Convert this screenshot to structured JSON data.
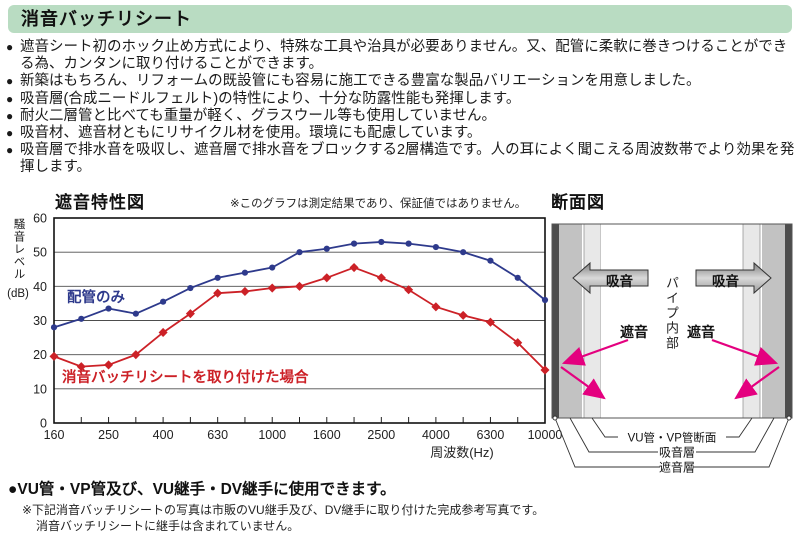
{
  "page": {
    "title": "消音バッチリシート",
    "bullet_char": "●"
  },
  "features": [
    "遮音シート初のホック止め方式により、特殊な工具や治具が必要ありません。又、配管に柔軟に巻きつけることができる為、カンタンに取り付けることができます。",
    "新築はもちろん、リフォームの既設管にも容易に施工できる豊富な製品バリエーションを用意しました。",
    "吸音層(合成ニードルフェルト)の特性により、十分な防露性能も発揮します。",
    "耐火二層管と比べても重量が軽く、グラスウール等も使用していません。",
    "吸音材、遮音材ともにリサイクル材を使用。環境にも配慮しています。",
    "吸音層で排水音を吸収し、遮音層で排水音をブロックする2層構造です。人の耳によく聞こえる周波数帯でより効果を発揮します。"
  ],
  "chart_data": {
    "type": "line",
    "title": "遮音特性図",
    "note": "※このグラフは測定結果であり、保証値ではありません。",
    "xlabel": "周波数(Hz)",
    "ylabel": "騒音レベル",
    "ylabel_unit": "(dB)",
    "ylim": [
      0,
      60
    ],
    "y_ticks": [
      0,
      10,
      20,
      30,
      40,
      50,
      60
    ],
    "grid": true,
    "x": [
      160,
      200,
      250,
      315,
      400,
      500,
      630,
      800,
      1000,
      1250,
      1600,
      2000,
      2500,
      3150,
      4000,
      5000,
      6300,
      8000,
      10000
    ],
    "x_labeled": [
      160,
      250,
      400,
      630,
      1000,
      1600,
      2500,
      4000,
      6300,
      10000
    ],
    "series": [
      {
        "name": "配管のみ",
        "color": "#2e3a8c",
        "marker": "circle",
        "values": [
          28,
          30.5,
          33.5,
          32,
          35.5,
          39.5,
          42.5,
          44,
          45.5,
          50,
          51,
          52.5,
          53,
          52.5,
          51.5,
          50,
          47.5,
          42.5,
          36
        ]
      },
      {
        "name": "消音バッチリシートを取り付けた場合",
        "color": "#cc2127",
        "marker": "diamond",
        "values": [
          19.5,
          16.5,
          17,
          20,
          26.5,
          32,
          38,
          38.5,
          39.5,
          40,
          42.5,
          45.5,
          42.5,
          39,
          34,
          31.5,
          29.5,
          23.5,
          15.5
        ]
      }
    ],
    "legend_position": "inline-annotations"
  },
  "diagram": {
    "title": "断面図",
    "absorb_arrow_label": "吸音",
    "pipe_interior_label": "パイプ内部",
    "block_label": "遮音",
    "layer_labels": {
      "pipe": "VU管・VP管断面",
      "absorb": "吸音層",
      "block": "遮音層"
    },
    "colors": {
      "block_layer": "#4d4d4d",
      "absorb_layer": "#c2c2c2",
      "pipe_wall": "#e8e8e8",
      "arrow_magenta": "#e4007f",
      "leader_line": "#333333"
    }
  },
  "bottom": {
    "headline": "●VU管・VP管及び、VU継手・DV継手に使用できます。",
    "note_line1": "※下記消音バッチリシートの写真は市販のVU継手及び、DV継手に取り付けた完成参考写真です。",
    "note_line2": "消音バッチリシートに継手は含まれていません。"
  },
  "colors": {
    "header_bg": "#b9dcc2",
    "body_text": "#1a1a1a"
  }
}
